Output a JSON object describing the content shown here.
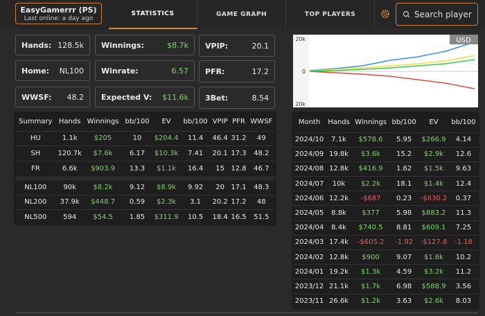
{
  "header": {
    "player_name": "EasyGamerrr (PS)",
    "last_online": "Last online: a day ago",
    "tabs": [
      "STATISTICS",
      "GAME GRAPH",
      "TOP PLAYERS"
    ],
    "search_placeholder": "Search player"
  },
  "stats": [
    {
      "label": "Hands:",
      "value": "128.5k"
    },
    {
      "label": "Winnings:",
      "value": "$8.7k"
    },
    {
      "label": "VPIP:",
      "value": "20.1"
    },
    {
      "label": "Home:",
      "value": "NL100"
    },
    {
      "label": "Winrate:",
      "value": "6.57"
    },
    {
      "label": "PFR:",
      "value": "17.2"
    },
    {
      "label": "WWSF:",
      "value": "48.2"
    },
    {
      "label": "Expected V:",
      "value": "$11.6k"
    },
    {
      "label": "3Bet:",
      "value": "8.54"
    }
  ],
  "graph": {
    "currency": "USD",
    "y_labels": [
      "20k",
      "0",
      "20k"
    ]
  },
  "summary_table": {
    "columns": [
      "Summary",
      "Hands",
      "Winnings",
      "bb/100",
      "EV",
      "bb/100",
      "VPIP",
      "PFR",
      "WWSF"
    ],
    "groups": [
      [
        [
          "HU",
          "1.1k",
          "$205",
          "10",
          "$204.4",
          "11.4",
          "46.4",
          "31.2",
          "49"
        ],
        [
          "SH",
          "120.7k",
          "$7.6k",
          "6.17",
          "$10.3k",
          "7.41",
          "20.1",
          "17.3",
          "48.2"
        ],
        [
          "FR",
          "6.6k",
          "$903.9",
          "13.3",
          "$1.1k",
          "16.4",
          "15",
          "12.8",
          "46.7"
        ]
      ],
      [
        [
          "NL100",
          "90k",
          "$8.2k",
          "9.12",
          "$8.9k",
          "9.92",
          "20",
          "17.1",
          "48.3"
        ],
        [
          "NL200",
          "37.9k",
          "$448.7",
          "0.59",
          "$2.3k",
          "3.1",
          "20.2",
          "17.2",
          "48"
        ],
        [
          "NL500",
          "594",
          "$54.5",
          "1.85",
          "$311.9",
          "10.5",
          "18.4",
          "16.5",
          "51.5"
        ]
      ]
    ]
  },
  "monthly_table": {
    "columns": [
      "Month",
      "Hands",
      "Winnings",
      "bb/100",
      "EV",
      "bb/100"
    ],
    "rows": [
      [
        "2024/10",
        "7.1k",
        "$578.6",
        "5.95",
        "$266.9",
        "4.14"
      ],
      [
        "2024/09",
        "19.8k",
        "$3.6k",
        "15.2",
        "$2.9k",
        "12.6"
      ],
      [
        "2024/08",
        "12.8k",
        "$416.9",
        "1.62",
        "$1.5k",
        "9.63"
      ],
      [
        "2024/07",
        "10k",
        "$2.2k",
        "18.1",
        "$1.4k",
        "12.4"
      ],
      [
        "2024/06",
        "12.2k",
        "-$687",
        "0.23",
        "-$630.2",
        "0.37"
      ],
      [
        "2024/05",
        "8.8k",
        "$377",
        "5.98",
        "$883.2",
        "11.3"
      ],
      [
        "2024/04",
        "8.4k",
        "$740.5",
        "8.81",
        "$609.1",
        "7.25"
      ],
      [
        "2024/03",
        "17.4k",
        "-$605.2",
        "-1.92",
        "-$127.8",
        "-1.18"
      ],
      [
        "2024/02",
        "12.8k",
        "$900",
        "9.07",
        "$1.6k",
        "10.2"
      ],
      [
        "2024/01",
        "19.2k",
        "$1.3k",
        "4.59",
        "$3.2k",
        "11.2"
      ],
      [
        "2023/12",
        "21.1k",
        "$1.7k",
        "6.98",
        "$588.9",
        "3.56"
      ],
      [
        "2023/11",
        "26.6k",
        "$1.2k",
        "3.63",
        "$2.6k",
        "8.03"
      ]
    ]
  }
}
